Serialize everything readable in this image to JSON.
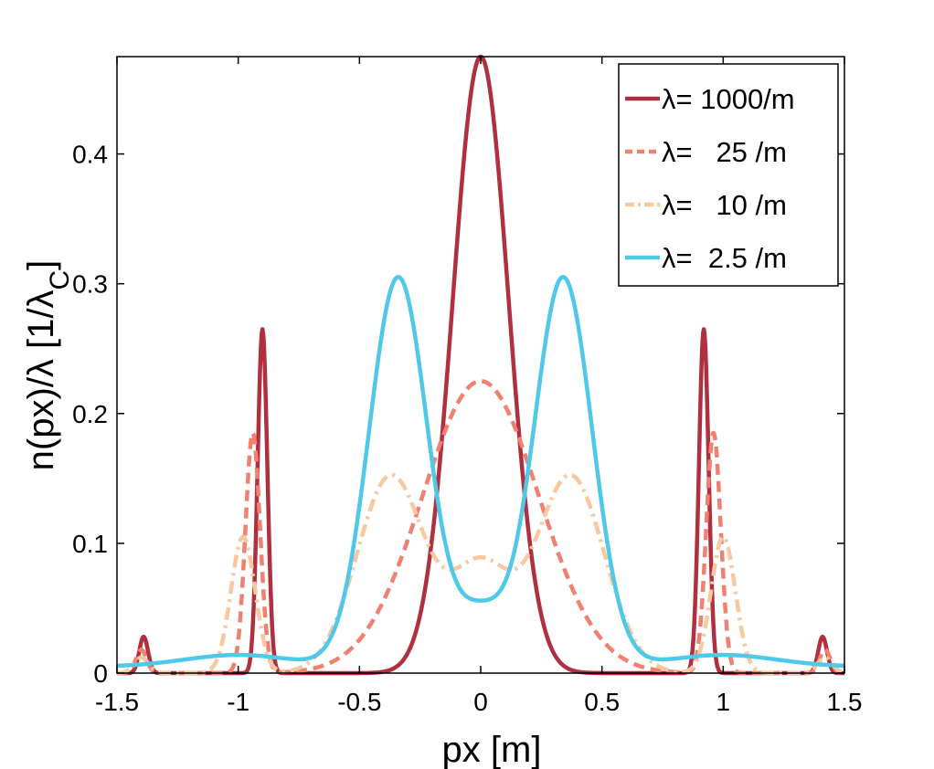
{
  "chart_data": {
    "type": "line",
    "xlabel": "px [m]",
    "ylabel_main": "n(px)/λ [1/λ",
    "ylabel_sub": "C",
    "ylabel_close": "]",
    "xlim": [
      -1.5,
      1.5
    ],
    "ylim": [
      0,
      0.475
    ],
    "xticks": [
      -1.5,
      -1,
      -0.5,
      0,
      0.5,
      1,
      1.5
    ],
    "xtick_labels": [
      "-1.5",
      "-1",
      "-0.5",
      "0",
      "0.5",
      "1",
      "1.5"
    ],
    "yticks": [
      0,
      0.1,
      0.2,
      0.3,
      0.4
    ],
    "ytick_labels": [
      "0",
      "0.1",
      "0.2",
      "0.3",
      "0.4"
    ],
    "legend_position": "top-right",
    "series": [
      {
        "name": "λ= 1000/m",
        "color": "#b03040",
        "dash": "solid",
        "profile": {
          "components": [
            {
              "type": "gauss",
              "center": 0,
              "amp": 0.475,
              "sigma": 0.115
            },
            {
              "type": "gauss",
              "center": -0.9,
              "amp": 0.265,
              "sigma": 0.02
            },
            {
              "type": "gauss",
              "center": 0.92,
              "amp": 0.265,
              "sigma": 0.02
            },
            {
              "type": "gauss",
              "center": -1.39,
              "amp": 0.028,
              "sigma": 0.018
            },
            {
              "type": "gauss",
              "center": 1.41,
              "amp": 0.028,
              "sigma": 0.018
            }
          ]
        }
      },
      {
        "name": "λ=   25 /m",
        "color": "#f08070",
        "dash": "dashed",
        "profile": {
          "components": [
            {
              "type": "gauss",
              "center": 0,
              "amp": 0.225,
              "sigma": 0.24
            },
            {
              "type": "gauss",
              "center": -0.94,
              "amp": 0.185,
              "sigma": 0.03
            },
            {
              "type": "gauss",
              "center": 0.96,
              "amp": 0.185,
              "sigma": 0.03
            },
            {
              "type": "gauss",
              "center": -1.4,
              "amp": 0.018,
              "sigma": 0.022
            },
            {
              "type": "gauss",
              "center": 1.42,
              "amp": 0.018,
              "sigma": 0.022
            }
          ]
        }
      },
      {
        "name": "λ=   10 /m",
        "color": "#f8c8a0",
        "dash": "dashdot",
        "profile": {
          "components": [
            {
              "type": "gauss",
              "center": -0.37,
              "amp": 0.152,
              "sigma": 0.14
            },
            {
              "type": "gauss",
              "center": 0.37,
              "amp": 0.152,
              "sigma": 0.14
            },
            {
              "type": "gauss",
              "center": 0,
              "amp": 0.08,
              "sigma": 0.12
            },
            {
              "type": "gauss",
              "center": -0.98,
              "amp": 0.105,
              "sigma": 0.05
            },
            {
              "type": "gauss",
              "center": 1.0,
              "amp": 0.105,
              "sigma": 0.05
            },
            {
              "type": "gauss",
              "center": -1.4,
              "amp": 0.012,
              "sigma": 0.03
            },
            {
              "type": "gauss",
              "center": 1.42,
              "amp": 0.012,
              "sigma": 0.03
            }
          ]
        }
      },
      {
        "name": "λ=  2.5 /m",
        "color": "#50c8e8",
        "dash": "solid",
        "profile": {
          "components": [
            {
              "type": "gauss",
              "center": -0.34,
              "amp": 0.3,
              "sigma": 0.12
            },
            {
              "type": "gauss",
              "center": 0.34,
              "amp": 0.3,
              "sigma": 0.12
            },
            {
              "type": "gauss",
              "center": 0,
              "amp": 0.04,
              "sigma": 0.1
            },
            {
              "type": "gauss",
              "center": -1.0,
              "amp": 0.009,
              "sigma": 0.22
            },
            {
              "type": "gauss",
              "center": 1.0,
              "amp": 0.009,
              "sigma": 0.22
            },
            {
              "type": "const",
              "amp": 0.005
            }
          ]
        }
      }
    ]
  }
}
